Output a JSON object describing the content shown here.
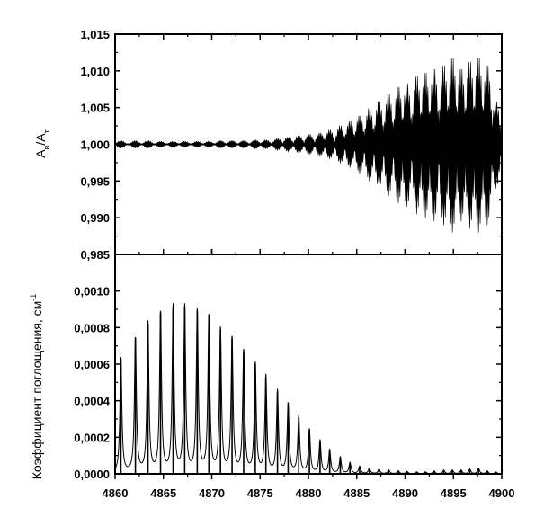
{
  "chart_data": [
    {
      "type": "line",
      "panel": "top",
      "ylabel": {
        "main1": "A",
        "sub1": "в",
        "slash": "/A",
        "sub2": "т"
      },
      "xlim": [
        4860,
        4900
      ],
      "ylim": [
        0.985,
        1.015
      ],
      "yticks": [
        "1,015",
        "1,010",
        "1,005",
        "1,000",
        "0,995",
        "0,990",
        "0,985"
      ],
      "yticks_values": [
        1.015,
        1.01,
        1.005,
        1.0,
        0.995,
        0.99,
        0.985
      ],
      "baseline": 1.0,
      "lines": [
        {
          "x": 4860.6,
          "amp": 0.0005
        },
        {
          "x": 4862.1,
          "amp": 0.0005
        },
        {
          "x": 4863.4,
          "amp": 0.0005
        },
        {
          "x": 4864.7,
          "amp": 0.0004
        },
        {
          "x": 4866.0,
          "amp": 0.0004
        },
        {
          "x": 4867.2,
          "amp": 0.0004
        },
        {
          "x": 4868.5,
          "amp": 0.0004
        },
        {
          "x": 4869.7,
          "amp": 0.0004
        },
        {
          "x": 4870.9,
          "amp": 0.0005
        },
        {
          "x": 4872.1,
          "amp": 0.0005
        },
        {
          "x": 4873.3,
          "amp": 0.0005
        },
        {
          "x": 4874.5,
          "amp": 0.0006
        },
        {
          "x": 4875.6,
          "amp": 0.0006
        },
        {
          "x": 4876.8,
          "amp": 0.0008
        },
        {
          "x": 4877.9,
          "amp": 0.001
        },
        {
          "x": 4879.0,
          "amp": 0.0012
        },
        {
          "x": 4880.1,
          "amp": 0.0014
        },
        {
          "x": 4881.2,
          "amp": 0.0016
        },
        {
          "x": 4882.2,
          "amp": 0.002
        },
        {
          "x": 4883.3,
          "amp": 0.0026
        },
        {
          "x": 4884.3,
          "amp": 0.0032
        },
        {
          "x": 4885.3,
          "amp": 0.004
        },
        {
          "x": 4886.3,
          "amp": 0.005
        },
        {
          "x": 4887.3,
          "amp": 0.006
        },
        {
          "x": 4888.3,
          "amp": 0.007
        },
        {
          "x": 4889.3,
          "amp": 0.008
        },
        {
          "x": 4890.2,
          "amp": 0.0085
        },
        {
          "x": 4891.2,
          "amp": 0.0095
        },
        {
          "x": 4892.1,
          "amp": 0.01
        },
        {
          "x": 4893.0,
          "amp": 0.0105
        },
        {
          "x": 4894.0,
          "amp": 0.011
        },
        {
          "x": 4894.9,
          "amp": 0.012
        },
        {
          "x": 4895.8,
          "amp": 0.0105
        },
        {
          "x": 4896.7,
          "amp": 0.0115
        },
        {
          "x": 4897.6,
          "amp": 0.012
        },
        {
          "x": 4898.5,
          "amp": 0.011
        },
        {
          "x": 4899.4,
          "amp": 0.006
        }
      ]
    },
    {
      "type": "line",
      "panel": "bottom",
      "xlabel": "",
      "ylabel": "Коэффициент поглощения, см",
      "ylabel_superscript": "-1",
      "xlim": [
        4860,
        4900
      ],
      "ylim": [
        0.0,
        0.0012
      ],
      "xticks": [
        "4860",
        "4865",
        "4870",
        "4875",
        "4880",
        "4885",
        "4890",
        "4895",
        "4900"
      ],
      "xticks_values": [
        4860,
        4865,
        4870,
        4875,
        4880,
        4885,
        4890,
        4895,
        4900
      ],
      "yticks": [
        "0,0010",
        "0,0008",
        "0,0006",
        "0,0004",
        "0,0002",
        "0,0000"
      ],
      "yticks_values": [
        0.001,
        0.0008,
        0.0006,
        0.0004,
        0.0002,
        0.0
      ],
      "peaks": [
        {
          "x": 4860.6,
          "y": 0.00063
        },
        {
          "x": 4862.1,
          "y": 0.00074
        },
        {
          "x": 4863.4,
          "y": 0.00082
        },
        {
          "x": 4864.7,
          "y": 0.00088
        },
        {
          "x": 4866.0,
          "y": 0.00091
        },
        {
          "x": 4867.2,
          "y": 0.00091
        },
        {
          "x": 4868.5,
          "y": 0.00089
        },
        {
          "x": 4869.7,
          "y": 0.00086
        },
        {
          "x": 4870.9,
          "y": 0.00079
        },
        {
          "x": 4872.1,
          "y": 0.00074
        },
        {
          "x": 4873.3,
          "y": 0.00067
        },
        {
          "x": 4874.5,
          "y": 0.0006
        },
        {
          "x": 4875.6,
          "y": 0.00053
        },
        {
          "x": 4876.8,
          "y": 0.00045
        },
        {
          "x": 4877.9,
          "y": 0.00038
        },
        {
          "x": 4879.0,
          "y": 0.00031
        },
        {
          "x": 4880.1,
          "y": 0.00024
        },
        {
          "x": 4881.2,
          "y": 0.00018
        },
        {
          "x": 4882.2,
          "y": 0.00013
        },
        {
          "x": 4883.3,
          "y": 9e-05
        },
        {
          "x": 4884.3,
          "y": 6e-05
        },
        {
          "x": 4885.3,
          "y": 4e-05
        },
        {
          "x": 4886.3,
          "y": 3e-05
        },
        {
          "x": 4887.3,
          "y": 2.5e-05
        },
        {
          "x": 4888.3,
          "y": 2e-05
        },
        {
          "x": 4889.3,
          "y": 1.5e-05
        },
        {
          "x": 4890.2,
          "y": 1.2e-05
        },
        {
          "x": 4891.2,
          "y": 1e-05
        },
        {
          "x": 4892.1,
          "y": 1e-05
        },
        {
          "x": 4893.0,
          "y": 1.5e-05
        },
        {
          "x": 4894.0,
          "y": 2e-05
        },
        {
          "x": 4894.9,
          "y": 2e-05
        },
        {
          "x": 4895.8,
          "y": 2e-05
        },
        {
          "x": 4896.7,
          "y": 2.5e-05
        },
        {
          "x": 4897.6,
          "y": 3e-05
        },
        {
          "x": 4898.5,
          "y": 1.5e-05
        },
        {
          "x": 4899.4,
          "y": 1e-05
        }
      ]
    }
  ]
}
